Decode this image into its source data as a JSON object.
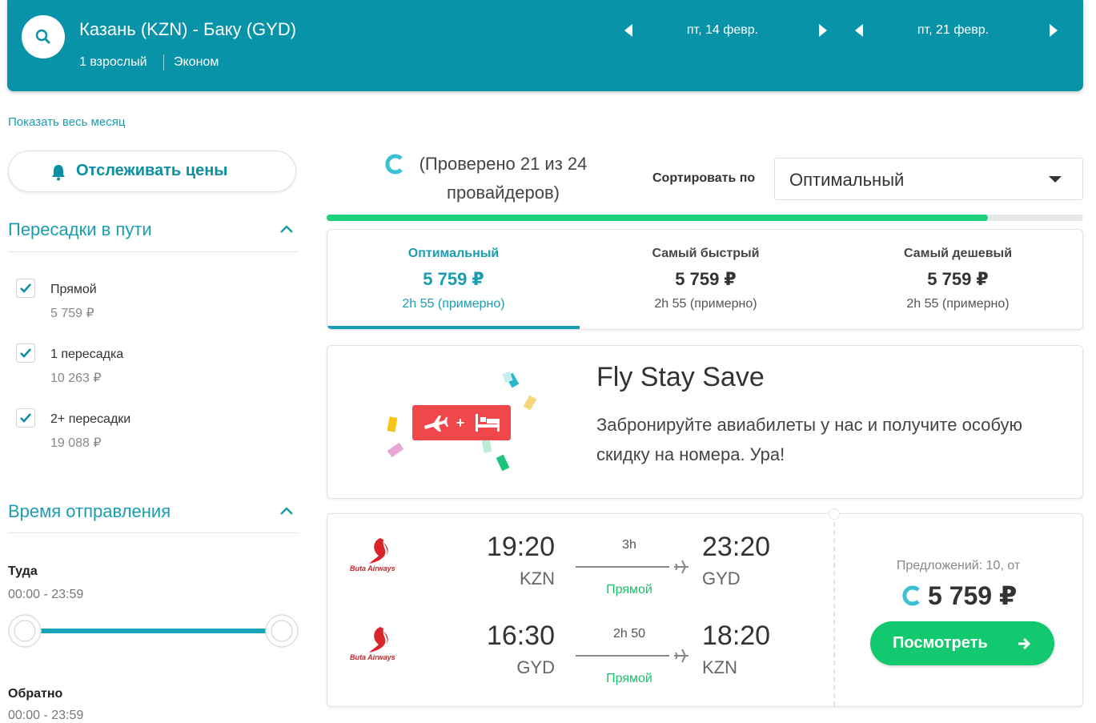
{
  "header": {
    "route": "Казань (KZN) - Баку (GYD)",
    "passengers": "1 взрослый",
    "cabin": "Эконом",
    "dates": [
      "пт, 14 февр.",
      "пт, 21 февр."
    ]
  },
  "sidebar": {
    "show_month": "Показать весь месяц",
    "track_button": "Отслеживать цены",
    "stops": {
      "title": "Пересадки в пути",
      "options": [
        {
          "label": "Прямой",
          "price": "5 759 ₽"
        },
        {
          "label": "1 пересадка",
          "price": "10 263 ₽"
        },
        {
          "label": "2+ пересадки",
          "price": "19 088 ₽"
        }
      ]
    },
    "departure": {
      "title": "Время отправления",
      "outbound_label": "Туда",
      "outbound_range": "00:00 - 23:59",
      "return_label": "Обратно",
      "return_range": "00:00 - 23:59"
    }
  },
  "results": {
    "progress": "(Проверено 21 из 24 провайдеров)",
    "sort_label": "Сортировать по",
    "sort_value": "Оптимальный",
    "tabs": [
      {
        "title": "Оптимальный",
        "price": "5 759 ₽",
        "duration": "2h 55 (примерно)"
      },
      {
        "title": "Самый быстрый",
        "price": "5 759 ₽",
        "duration": "2h 55 (примерно)"
      },
      {
        "title": "Самый дешевый",
        "price": "5 759 ₽",
        "duration": "2h 55 (примерно)"
      }
    ],
    "promo": {
      "title": "Fly Stay Save",
      "text": "Забронируйте авиабилеты у нас и получите особую скидку на номера. Ура!"
    },
    "flight": {
      "legs": [
        {
          "airline": "Buta Airways",
          "dep_time": "19:20",
          "dep_code": "KZN",
          "duration": "3h",
          "stops": "Прямой",
          "arr_time": "23:20",
          "arr_code": "GYD"
        },
        {
          "airline": "Buta Airways",
          "dep_time": "16:30",
          "dep_code": "GYD",
          "duration": "2h 50",
          "stops": "Прямой",
          "arr_time": "18:20",
          "arr_code": "KZN"
        }
      ],
      "offers": "Предложений: 10, от",
      "price": "5 759 ₽",
      "button": "Посмотреть"
    }
  }
}
